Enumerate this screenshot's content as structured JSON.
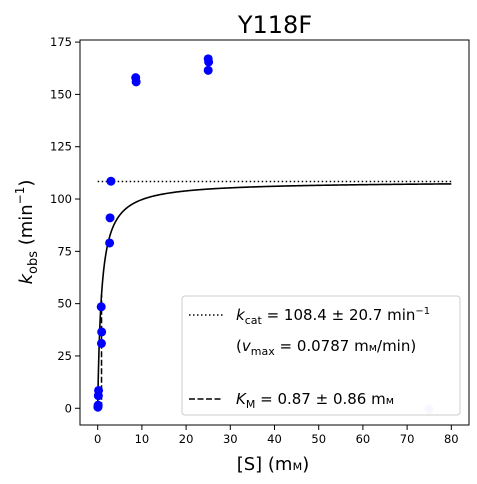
{
  "chart_data": {
    "type": "scatter",
    "title": "Y118F",
    "xlabel": {
      "main": "[S] (m",
      "unit": "м",
      "end": ")"
    },
    "ylabel": {
      "k": "k",
      "sub": "obs",
      "rest": " (min",
      "sup": "−1",
      "end": ")"
    },
    "xlim": [
      -4,
      84
    ],
    "ylim": [
      -8,
      176
    ],
    "xticks": [
      0,
      10,
      20,
      30,
      40,
      50,
      60,
      70,
      80
    ],
    "yticks": [
      0,
      25,
      50,
      75,
      100,
      125,
      150,
      175
    ],
    "grid": false,
    "legend_position": "lower-right",
    "points": [
      {
        "x": 0.05,
        "y": 0.5
      },
      {
        "x": 0.1,
        "y": 1.5
      },
      {
        "x": 0.15,
        "y": 6
      },
      {
        "x": 0.2,
        "y": 8.5
      },
      {
        "x": 0.8,
        "y": 48.5
      },
      {
        "x": 0.9,
        "y": 36.5
      },
      {
        "x": 0.85,
        "y": 31
      },
      {
        "x": 2.7,
        "y": 79
      },
      {
        "x": 2.8,
        "y": 91
      },
      {
        "x": 3.0,
        "y": 108.5
      },
      {
        "x": 8.6,
        "y": 158
      },
      {
        "x": 8.7,
        "y": 156
      },
      {
        "x": 25.0,
        "y": 167
      },
      {
        "x": 25.1,
        "y": 165.5
      },
      {
        "x": 25.0,
        "y": 161.5
      }
    ],
    "outliers": [
      {
        "x": 75.0,
        "y": -0.5
      }
    ],
    "fit": {
      "model": "michaelis-menten",
      "kcat": 108.4,
      "KM": 0.87,
      "x_range": [
        0,
        80
      ]
    },
    "kcat_line": {
      "y": 108.4,
      "x_range": [
        0,
        80
      ]
    },
    "KM_line": {
      "x": 0.87,
      "y_range": [
        0,
        54.2
      ]
    },
    "colors": {
      "points": "#0000ff",
      "outlier": "#c8c8ff",
      "fit": "#000000"
    },
    "legend": {
      "kcat": {
        "k": "k",
        "sub": "cat",
        "text": " = 108.4 ± 20.7 min",
        "sup": "−1"
      },
      "vmax": {
        "open": "(",
        "v": "v",
        "sub": "max",
        "text": " = 0.0787 m",
        "unit": "м",
        "end": "/min)"
      },
      "KM": {
        "k": "K",
        "sub": "M",
        "text": " = 0.87 ± 0.86 m",
        "unit": "м"
      }
    }
  }
}
